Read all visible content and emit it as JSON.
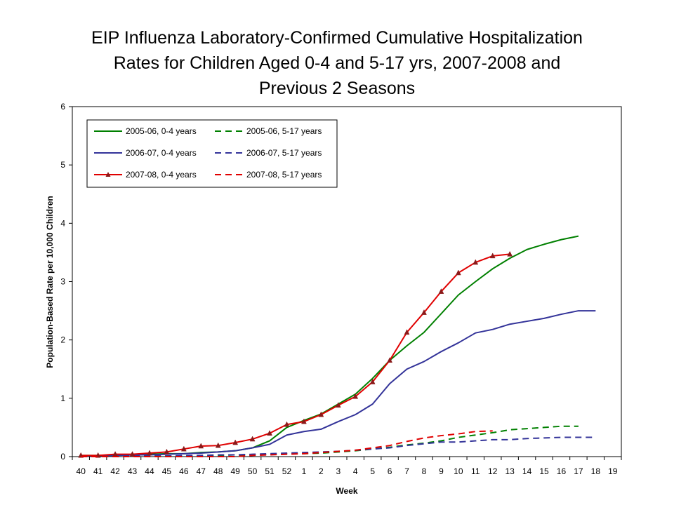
{
  "chart_data": {
    "type": "line",
    "title_lines": [
      "EIP Influenza Laboratory-Confirmed Cumulative Hospitalization",
      "Rates for Children Aged 0-4 and 5-17 yrs, 2007-2008 and",
      "Previous 2 Seasons"
    ],
    "xlabel": "Week",
    "ylabel": "Population-Based Rate per 10,000 Children",
    "ylim": [
      0,
      6
    ],
    "yticks": [
      0,
      1,
      2,
      3,
      4,
      5,
      6
    ],
    "categories": [
      "40",
      "41",
      "42",
      "43",
      "44",
      "45",
      "46",
      "47",
      "48",
      "49",
      "50",
      "51",
      "52",
      "1",
      "2",
      "3",
      "4",
      "5",
      "6",
      "7",
      "8",
      "9",
      "10",
      "11",
      "12",
      "13",
      "14",
      "15",
      "16",
      "17",
      "18",
      "19"
    ],
    "grid": false,
    "legend_position": "top-left",
    "series": [
      {
        "name": "2005-06, 0-4 years",
        "color": "#008000",
        "style": "solid",
        "marker": "none",
        "values": [
          0.02,
          0.02,
          0.03,
          0.03,
          0.04,
          0.05,
          0.05,
          0.07,
          0.08,
          0.1,
          0.15,
          0.27,
          0.5,
          0.62,
          0.73,
          0.9,
          1.07,
          1.34,
          1.65,
          1.9,
          2.13,
          2.45,
          2.77,
          3.0,
          3.22,
          3.4,
          3.55,
          3.64,
          3.72,
          3.78,
          null,
          null
        ]
      },
      {
        "name": "2005-06, 5-17 years",
        "color": "#008000",
        "style": "dashed",
        "marker": "none",
        "values": [
          0.0,
          0.0,
          0.0,
          0.01,
          0.01,
          0.01,
          0.01,
          0.02,
          0.02,
          0.03,
          0.03,
          0.04,
          0.05,
          0.05,
          0.06,
          0.08,
          0.1,
          0.13,
          0.16,
          0.2,
          0.23,
          0.27,
          0.33,
          0.37,
          0.41,
          0.46,
          0.48,
          0.5,
          0.52,
          0.52,
          null,
          null
        ]
      },
      {
        "name": "2006-07, 0-4 years",
        "color": "#333399",
        "style": "solid",
        "marker": "none",
        "values": [
          0.01,
          0.02,
          0.02,
          0.03,
          0.03,
          0.04,
          0.05,
          0.06,
          0.08,
          0.1,
          0.15,
          0.21,
          0.37,
          0.43,
          0.47,
          0.6,
          0.72,
          0.9,
          1.25,
          1.5,
          1.63,
          1.8,
          1.95,
          2.12,
          2.18,
          2.27,
          2.32,
          2.37,
          2.44,
          2.5,
          2.5,
          null
        ]
      },
      {
        "name": "2006-07, 5-17 years",
        "color": "#333399",
        "style": "dashed",
        "marker": "none",
        "values": [
          0.0,
          0.0,
          0.0,
          0.01,
          0.01,
          0.01,
          0.02,
          0.02,
          0.03,
          0.03,
          0.04,
          0.05,
          0.06,
          0.07,
          0.08,
          0.09,
          0.11,
          0.13,
          0.15,
          0.19,
          0.22,
          0.25,
          0.25,
          0.27,
          0.29,
          0.29,
          0.31,
          0.32,
          0.33,
          0.33,
          0.33,
          null
        ]
      },
      {
        "name": "2007-08, 0-4 years",
        "color": "#E00000",
        "style": "solid",
        "marker": "triangle",
        "values": [
          0.02,
          0.02,
          0.04,
          0.04,
          0.06,
          0.08,
          0.13,
          0.18,
          0.19,
          0.24,
          0.3,
          0.4,
          0.55,
          0.6,
          0.72,
          0.88,
          1.03,
          1.28,
          1.65,
          2.13,
          2.47,
          2.83,
          3.15,
          3.33,
          3.44,
          3.47,
          null,
          null,
          null,
          null,
          null,
          null
        ]
      },
      {
        "name": "2007-08, 5-17 years",
        "color": "#E00000",
        "style": "dashed",
        "marker": "none",
        "values": [
          0.0,
          0.0,
          0.0,
          0.0,
          0.0,
          0.0,
          0.0,
          0.0,
          0.0,
          0.0,
          0.02,
          0.03,
          0.04,
          0.05,
          0.07,
          0.09,
          0.11,
          0.15,
          0.19,
          0.26,
          0.32,
          0.36,
          0.39,
          0.43,
          0.44,
          null,
          null,
          null,
          null,
          null,
          null,
          null
        ]
      }
    ]
  }
}
